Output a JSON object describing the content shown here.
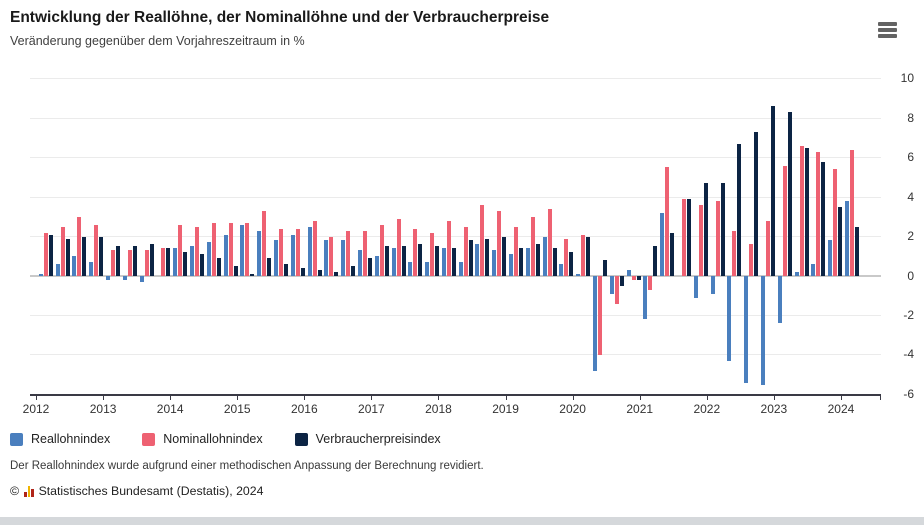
{
  "header": {
    "title": "Entwicklung der Reallöhne, der Nominallöhne und der Verbraucherpreise",
    "subtitle": "Veränderung gegenüber dem Vorjahreszeitraum in %"
  },
  "menu": {
    "icon": "hamburger-context-menu-icon"
  },
  "chart_data": {
    "type": "bar",
    "title": "Entwicklung der Reallöhne, der Nominallöhne und der Verbraucherpreise",
    "subtitle": "Veränderung gegenüber dem Vorjahreszeitraum in %",
    "x_start": "2012 Q1",
    "x_end": "2024 Q1",
    "frequency": "quarterly",
    "x_tick_labels": [
      "2012",
      "2013",
      "2014",
      "2015",
      "2016",
      "2017",
      "2018",
      "2019",
      "2020",
      "2021",
      "2022",
      "2023",
      "2024"
    ],
    "ylim": [
      -6,
      10
    ],
    "yticks": [
      10,
      8,
      6,
      4,
      2,
      0,
      -2,
      -4,
      -6
    ],
    "grid": true,
    "legend_position": "bottom-left",
    "series": [
      {
        "name": "Reallohnindex",
        "color": "#4a7fbe",
        "values": [
          0.1,
          0.6,
          1.0,
          0.7,
          -0.2,
          -0.2,
          -0.3,
          0.0,
          1.4,
          1.5,
          1.7,
          2.1,
          2.6,
          2.3,
          1.8,
          2.1,
          2.5,
          1.8,
          1.8,
          1.3,
          1.0,
          1.4,
          0.7,
          0.7,
          1.4,
          0.7,
          1.6,
          1.3,
          1.1,
          1.4,
          2.0,
          0.6,
          0.1,
          -4.8,
          -0.9,
          0.3,
          -2.2,
          3.2,
          0.0,
          -1.1,
          -0.9,
          -4.3,
          -5.4,
          -5.5,
          -2.4,
          0.2,
          0.6,
          1.8,
          3.8
        ]
      },
      {
        "name": "Nominallohnindex",
        "color": "#ee6172",
        "values": [
          2.2,
          2.5,
          3.0,
          2.6,
          1.3,
          1.3,
          1.3,
          1.4,
          2.6,
          2.5,
          2.7,
          2.7,
          2.7,
          3.3,
          2.4,
          2.4,
          2.8,
          2.0,
          2.3,
          2.3,
          2.6,
          2.9,
          2.4,
          2.2,
          2.8,
          2.5,
          3.6,
          3.3,
          2.5,
          3.0,
          3.4,
          1.9,
          2.1,
          -4.0,
          -1.4,
          -0.2,
          -0.7,
          5.5,
          3.9,
          3.6,
          3.8,
          2.3,
          1.6,
          2.8,
          5.6,
          6.6,
          6.3,
          5.4,
          6.4
        ]
      },
      {
        "name": "Verbraucherpreisindex",
        "color": "#0c2444",
        "values": [
          2.1,
          1.9,
          2.0,
          2.0,
          1.5,
          1.5,
          1.6,
          1.4,
          1.2,
          1.1,
          0.9,
          0.5,
          0.1,
          0.9,
          0.6,
          0.4,
          0.3,
          0.2,
          0.5,
          0.9,
          1.5,
          1.5,
          1.6,
          1.5,
          1.4,
          1.8,
          1.9,
          2.0,
          1.4,
          1.6,
          1.4,
          1.2,
          2.0,
          0.8,
          -0.5,
          -0.2,
          1.5,
          2.2,
          3.9,
          4.7,
          4.7,
          6.7,
          7.3,
          8.6,
          8.3,
          6.5,
          5.8,
          3.5,
          2.5
        ]
      }
    ]
  },
  "legend": {
    "items": [
      {
        "label": "Reallohnindex",
        "color": "#4a7fbe"
      },
      {
        "label": "Nominallohnindex",
        "color": "#ee6172"
      },
      {
        "label": "Verbraucherpreisindex",
        "color": "#0c2444"
      }
    ]
  },
  "notes": {
    "revision_note": "Der Reallohnindex wurde aufgrund einer methodischen Anpassung der Berechnung revidiert.",
    "copyright_prefix": "©",
    "copyright_text": "Statistisches Bundesamt (Destatis), 2024",
    "copyright_icon": "destatis-bars-icon"
  }
}
